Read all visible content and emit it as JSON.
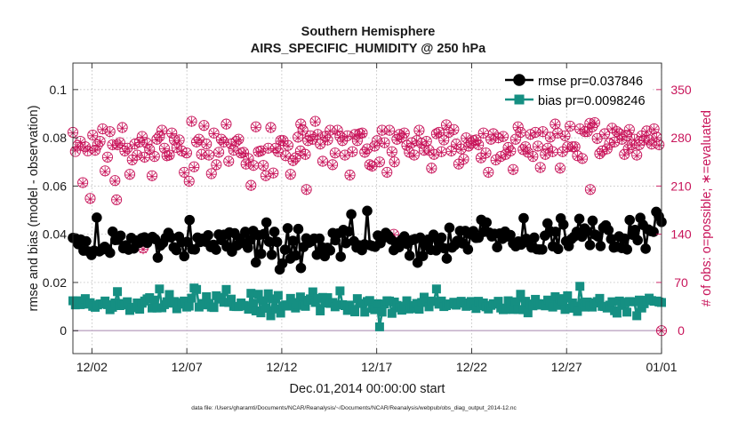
{
  "chart_data": {
    "type": "line",
    "title": "Southern Hemisphere",
    "subtitle": "AIRS_SPECIFIC_HUMIDITY @ 250 hPa",
    "xlabel": "Dec.01,2014 00:00:00 start",
    "ylabel_left": "rmse and bias (model - observation)",
    "ylabel_right": "# of obs: o=possible; ∗=evaluated",
    "footnote": "data file: /Users/gharamti/Documents/NCAR/Reanalysis/~/Documents/NCAR/Reanalysis/webpub/obs_diag_output_2014-12.nc",
    "xlim": [
      0,
      31
    ],
    "ylim_left": [
      -0.0095,
      0.111
    ],
    "ylim_right": [
      -33.3,
      388.5
    ],
    "x_ticks": [
      {
        "value": 1,
        "label": "12/02"
      },
      {
        "value": 6,
        "label": "12/07"
      },
      {
        "value": 11,
        "label": "12/12"
      },
      {
        "value": 16,
        "label": "12/17"
      },
      {
        "value": 21,
        "label": "12/22"
      },
      {
        "value": 26,
        "label": "12/27"
      },
      {
        "value": 31,
        "label": "01/01"
      }
    ],
    "y_ticks_left": [
      {
        "value": 0,
        "label": "0"
      },
      {
        "value": 0.02,
        "label": "0.02"
      },
      {
        "value": 0.04,
        "label": "0.04"
      },
      {
        "value": 0.06,
        "label": "0.06"
      },
      {
        "value": 0.08,
        "label": "0.08"
      },
      {
        "value": 0.1,
        "label": "0.1"
      }
    ],
    "y_ticks_right": [
      {
        "value": 0,
        "label": "0"
      },
      {
        "value": 70,
        "label": "70"
      },
      {
        "value": 140,
        "label": "140"
      },
      {
        "value": 210,
        "label": "210"
      },
      {
        "value": 280,
        "label": "280"
      },
      {
        "value": 350,
        "label": "350"
      }
    ],
    "legend": {
      "position": "top-right",
      "entries": [
        {
          "label": "rmse pr=0.037846",
          "color": "#000000"
        },
        {
          "label": "bias pr=0.0098246",
          "color": "#158f82"
        }
      ]
    },
    "colors": {
      "rmse": "#000000",
      "bias": "#158f82",
      "obs": "#c8145a",
      "zero_line": "#c7b3cc"
    },
    "series": [
      {
        "name": "rmse",
        "axis": "left",
        "values": [
          0.0385,
          0.0383,
          0.0359,
          0.0378,
          0.0332,
          0.0371,
          0.0328,
          0.0314,
          0.0332,
          0.0469,
          0.0329,
          0.0336,
          0.0348,
          0.0338,
          0.0323,
          0.0411,
          0.0376,
          0.0377,
          0.0394,
          0.0342,
          0.0354,
          0.0336,
          0.0385,
          0.0341,
          0.0374,
          0.0364,
          0.0384,
          0.0387,
          0.0364,
          0.0383,
          0.0389,
          0.038,
          0.0303,
          0.0353,
          0.0364,
          0.0385,
          0.0406,
          0.0387,
          0.0346,
          0.0334,
          0.039,
          0.0367,
          0.0309,
          0.0368,
          0.0459,
          0.0338,
          0.0337,
          0.0386,
          0.0368,
          0.0382,
          0.0369,
          0.0396,
          0.0347,
          0.0356,
          0.0336,
          0.0399,
          0.0376,
          0.0398,
          0.0349,
          0.0408,
          0.0328,
          0.0404,
          0.0354,
          0.0383,
          0.0364,
          0.041,
          0.0344,
          0.0377,
          0.0414,
          0.0283,
          0.0396,
          0.0319,
          0.0401,
          0.0449,
          0.0369,
          0.0315,
          0.041,
          0.0368,
          0.0254,
          0.0279,
          0.0336,
          0.0425,
          0.0299,
          0.0373,
          0.0312,
          0.0422,
          0.026,
          0.0347,
          0.0383,
          0.0365,
          0.0371,
          0.0382,
          0.0315,
          0.0382,
          0.0346,
          0.0309,
          0.0344,
          0.0333,
          0.0405,
          0.0375,
          0.0403,
          0.0307,
          0.0418,
          0.0363,
          0.0411,
          0.0483,
          0.0371,
          0.0345,
          0.0354,
          0.0334,
          0.0358,
          0.0497,
          0.0355,
          0.0351,
          0.0348,
          0.0395,
          0.0363,
          0.0384,
          0.0406,
          0.0394,
          0.0378,
          0.0334,
          0.0365,
          0.0346,
          0.0378,
          0.0391,
          0.036,
          0.0311,
          0.0376,
          0.038,
          0.0282,
          0.0386,
          0.031,
          0.0354,
          0.0378,
          0.0335,
          0.0398,
          0.0333,
          0.0368,
          0.0386,
          0.0342,
          0.0299,
          0.0427,
          0.0345,
          0.0355,
          0.0373,
          0.0414,
          0.0362,
          0.0414,
          0.0337,
          0.04,
          0.0413,
          0.0385,
          0.0386,
          0.046,
          0.041,
          0.0449,
          0.0407,
          0.0391,
          0.0402,
          0.0346,
          0.0403,
          0.0381,
          0.0411,
          0.0391,
          0.0397,
          0.0362,
          0.035,
          0.037,
          0.0357,
          0.0467,
          0.0381,
          0.0363,
          0.0345,
          0.0386,
          0.0338,
          0.0337,
          0.0337,
          0.0394,
          0.0445,
          0.0413,
          0.035,
          0.041,
          0.0339,
          0.0466,
          0.044,
          0.0371,
          0.0351,
          0.038,
          0.039,
          0.041,
          0.0464,
          0.039,
          0.0424,
          0.0412,
          0.0355,
          0.0456,
          0.0398,
          0.0391,
          0.0351,
          0.0427,
          0.0437,
          0.0417,
          0.038,
          0.0345,
          0.0348,
          0.0391,
          0.0343,
          0.0382,
          0.0337,
          0.0459,
          0.0398,
          0.0418,
          0.0375,
          0.0468,
          0.0439,
          0.034,
          0.042,
          0.0413,
          0.041,
          0.0493,
          0.0474,
          0.0451
        ]
      },
      {
        "name": "bias",
        "axis": "left",
        "values": [
          0.0124,
          0.0107,
          0.0124,
          0.0108,
          0.0116,
          0.0133,
          0.011,
          0.0116,
          0.0101,
          0.0097,
          0.0107,
          0.0111,
          0.0111,
          0.0123,
          0.0108,
          0.0087,
          0.0097,
          0.0115,
          0.0162,
          0.0104,
          0.0113,
          0.0107,
          0.012,
          0.0084,
          0.0095,
          0.0097,
          0.0115,
          0.0089,
          0.0114,
          0.0123,
          0.0132,
          0.0137,
          0.0094,
          0.0127,
          0.0094,
          0.0173,
          0.0095,
          0.0108,
          0.012,
          0.015,
          0.0114,
          0.0121,
          0.0091,
          0.011,
          0.0117,
          0.0123,
          0.0098,
          0.0102,
          0.0135,
          0.0177,
          0.0171,
          0.0098,
          0.0113,
          0.0107,
          0.0141,
          0.0113,
          0.0098,
          0.0096,
          0.0145,
          0.0131,
          0.0138,
          0.0118,
          0.0171,
          0.0117,
          0.0131,
          0.0101,
          0.01,
          0.01,
          0.0115,
          0.0105,
          0.0103,
          0.0089,
          0.0155,
          0.0114,
          0.0082,
          0.0151,
          0.0074,
          0.0124,
          0.0093,
          0.0153,
          0.0062,
          0.0132,
          0.009,
          0.0146,
          0.0073,
          0.0103,
          0.0107,
          0.0102,
          0.0134,
          0.0117,
          0.0094,
          0.0111,
          0.014,
          0.0105,
          0.0101,
          0.0126,
          0.0132,
          0.0161,
          0.0117,
          0.0134,
          0.0082,
          0.0138,
          0.0115,
          0.0137,
          0.0113,
          0.0117,
          0.0099,
          0.0107,
          0.0165,
          0.0108,
          0.0104,
          0.0084,
          0.0106,
          0.0088,
          0.0078,
          0.0133,
          0.0113,
          0.0113,
          0.0077,
          0.0121,
          0.0125,
          0.0093,
          0.0087,
          0.0112,
          0.0016,
          0.0077,
          0.0111,
          0.0124,
          0.0123,
          0.0072,
          0.0119,
          0.0105,
          0.0095,
          0.0085,
          0.0102,
          0.0124,
          0.009,
          0.0093,
          0.0104,
          0.0113,
          0.0089,
          0.0117,
          0.0139,
          0.0121,
          0.0099,
          0.0123,
          0.0121,
          0.0173,
          0.011,
          0.0123,
          0.01,
          0.0104,
          0.0111,
          0.011,
          0.0118,
          0.0106,
          0.0114,
          0.0122,
          0.0115,
          0.0101,
          0.0104,
          0.0121,
          0.0113,
          0.0092,
          0.0122,
          0.0104,
          0.0115,
          0.0099,
          0.009,
          0.0105,
          0.0112,
          0.011,
          0.0122,
          0.0094,
          0.0087,
          0.0088,
          0.0124,
          0.0115,
          0.0088,
          0.012,
          0.0088,
          0.0151,
          0.0087,
          0.0122,
          0.0074,
          0.0111,
          0.0103,
          0.013,
          0.0112,
          0.0106,
          0.0112,
          0.0103,
          0.0127,
          0.0118,
          0.0098,
          0.0141,
          0.0105,
          0.0133,
          0.0123,
          0.0088,
          0.0145,
          0.0093,
          0.0115,
          0.0102,
          0.008,
          0.0184,
          0.0116,
          0.0098,
          0.0119,
          0.0101,
          0.0098,
          0.0115,
          0.0121,
          0.0134,
          0.0101,
          0.01,
          0.0094,
          0.0106,
          0.012,
          0.0083,
          0.0073,
          0.0123,
          0.0105,
          0.0118,
          0.0077,
          0.0121,
          0.012,
          0.012,
          0.0062,
          0.0127,
          0.0094,
          0.0112,
          0.0126,
          0.0135,
          0.0125,
          0.0122,
          0.0123,
          0.0119,
          0.0117
        ]
      },
      {
        "name": "obs_possible",
        "axis": "right",
        "values": [
          288,
          260,
          269,
          275,
          215,
          267,
          261,
          192,
          284,
          262,
          270,
          275,
          293,
          232,
          252,
          289,
          270,
          218,
          270,
          273,
          295,
          261,
          265,
          227,
          248,
          271,
          255,
          274,
          282,
          252,
          272,
          263,
          225,
          253,
          278,
          282,
          291,
          265,
          254,
          255,
          287,
          277,
          266,
          277,
          261,
          230,
          258,
          217,
          304,
          238,
          274,
          278,
          256,
          298,
          271,
          255,
          228,
          287,
          241,
          259,
          278,
          274,
          300,
          246,
          271,
          262,
          275,
          278,
          258,
          259,
          242,
          250,
          211,
          240,
          296,
          260,
          261,
          240,
          225,
          265,
          295,
          229,
          265,
          260,
          276,
          276,
          254,
          269,
          227,
          247,
          251,
          281,
          261,
          291,
          256,
          276,
          283,
          278,
          304,
          285,
          271,
          246,
          282,
          277,
          291,
          241,
          258,
          291,
          282,
          276,
          255,
          283,
          226,
          260,
          285,
          276,
          286,
          287,
          259,
          264,
          241,
          239,
          268,
          276,
          245,
          291,
          273,
          230,
          291,
          260,
          245,
          278,
          285,
          281,
          287,
          269,
          259,
          273,
          255,
          276,
          291,
          272,
          262,
          275,
          262,
          236,
          256,
          286,
          288,
          260,
          277,
          299,
          288,
          261,
          292,
          271,
          242,
          264,
          249,
          280,
          268,
          272,
          276,
          277,
          270,
          251,
          287,
          258,
          230,
          278,
          286,
          248,
          280,
          253,
          282,
          256,
          266,
          261,
          234,
          278,
          296,
          288,
          263,
          267,
          259,
          285,
          253,
          288,
          268,
          237,
          289,
          256,
          265,
          281,
          260,
          300,
          287,
          236,
          260,
          283,
          267,
          297,
          267,
          267,
          254,
          293,
          250,
          289,
          289,
          301,
          296,
          302,
          279,
          257,
          261,
          286,
          264,
          272,
          294,
          274,
          289,
          286,
          278,
          256,
          283,
          292,
          270,
          278,
          255,
          270,
          283,
          277,
          290,
          277,
          271,
          293,
          281,
          270,
          0
        ]
      },
      {
        "name": "obs_evaluated",
        "axis": "right",
        "values": [
          287,
          262,
          266,
          273,
          214,
          266,
          262,
          191,
          283,
          261,
          268,
          274,
          292,
          231,
          251,
          288,
          269,
          217,
          269,
          272,
          294,
          260,
          264,
          226,
          247,
          270,
          254,
          273,
          281,
          251,
          271,
          262,
          224,
          252,
          277,
          281,
          290,
          264,
          253,
          254,
          286,
          276,
          265,
          276,
          260,
          229,
          257,
          216,
          303,
          237,
          273,
          277,
          255,
          297,
          270,
          254,
          227,
          286,
          240,
          258,
          277,
          273,
          299,
          245,
          270,
          261,
          274,
          277,
          257,
          258,
          241,
          249,
          210,
          239,
          295,
          259,
          260,
          239,
          224,
          264,
          294,
          228,
          264,
          259,
          275,
          275,
          253,
          268,
          226,
          246,
          250,
          280,
          260,
          290,
          255,
          275,
          282,
          277,
          303,
          284,
          270,
          245,
          281,
          276,
          290,
          240,
          257,
          290,
          281,
          275,
          254,
          282,
          225,
          259,
          284,
          275,
          285,
          286,
          258,
          263,
          240,
          238,
          267,
          275,
          244,
          290,
          272,
          229,
          290,
          259,
          244,
          277,
          284,
          280,
          286,
          268,
          258,
          272,
          254,
          275,
          290,
          271,
          261,
          274,
          261,
          235,
          255,
          285,
          287,
          259,
          276,
          298,
          287,
          260,
          291,
          270,
          241,
          263,
          248,
          279,
          267,
          271,
          275,
          276,
          269,
          250,
          286,
          257,
          229,
          277,
          285,
          247,
          279,
          252,
          281,
          255,
          265,
          260,
          233,
          277,
          295,
          287,
          262,
          266,
          258,
          284,
          252,
          287,
          267,
          236,
          288,
          255,
          264,
          280,
          259,
          299,
          286,
          235,
          259,
          282,
          266,
          296,
          266,
          266,
          253,
          292,
          249,
          288,
          288,
          300,
          295,
          301,
          278,
          256,
          260,
          285,
          263,
          271,
          293,
          273,
          288,
          285,
          277,
          255,
          282,
          291,
          269,
          277,
          254,
          269,
          282,
          276,
          289,
          276,
          270,
          292,
          280,
          269,
          0
        ]
      }
    ],
    "obs_anomalies": [
      {
        "x": 2.3,
        "possible": 190,
        "evaluated": 190
      },
      {
        "x": 3.7,
        "possible": 120,
        "evaluated": 118
      },
      {
        "x": 12.0,
        "possible": 300,
        "evaluated": 299
      },
      {
        "x": 12.3,
        "possible": 205,
        "evaluated": 204
      },
      {
        "x": 16.9,
        "possible": 140,
        "evaluated": 139
      },
      {
        "x": 27.25,
        "possible": 205,
        "evaluated": 204
      },
      {
        "x": 29.25,
        "possible": 264,
        "evaluated": 263
      }
    ]
  }
}
